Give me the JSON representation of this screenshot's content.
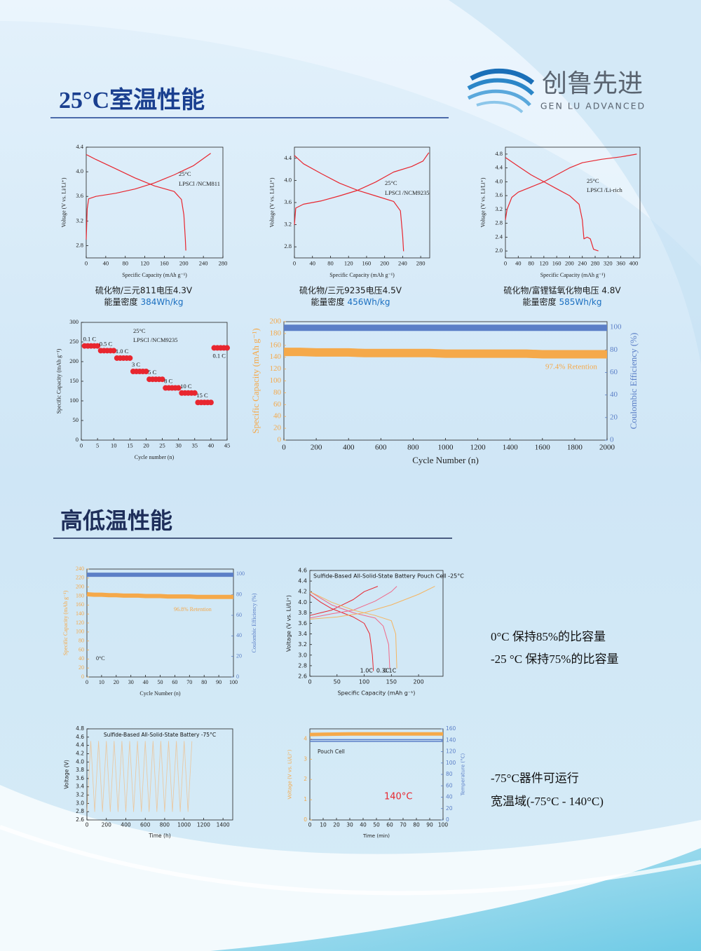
{
  "logo": {
    "name": "创鲁先进",
    "subtitle": "GEN LU ADVANCED"
  },
  "sections": [
    {
      "title": "25°C室温性能"
    },
    {
      "title": "高低温性能"
    }
  ],
  "captions": [
    {
      "model": "硫化物/三元811电压4.3V",
      "label": "能量密度",
      "value": "384Wh/kg"
    },
    {
      "model": "硫化物/三元9235电压4.5V",
      "label": "能量密度",
      "value": "456Wh/kg"
    },
    {
      "model": "硫化物/富锂锰氧化物电压 4.8V",
      "label": "能量密度",
      "value": "585Wh/kg"
    }
  ],
  "notes": [
    "0°C 保持85%的比容量",
    "-25 °C 保持75%的比容量",
    "-75°C器件可运行",
    "宽温域(-75°C - 140°C)"
  ],
  "chart_data": [
    {
      "type": "line",
      "xlabel": "Specific Capacity (mAh g⁻¹)",
      "ylabel": "Voltage (V vs. Li/Li⁺)",
      "xlim": [
        0,
        280
      ],
      "xticks": [
        0,
        40,
        80,
        120,
        160,
        200,
        240,
        280
      ],
      "ylim": [
        2.6,
        4.4
      ],
      "yticks": [
        2.8,
        3.2,
        3.6,
        {
          "value": 4,
          "label": "4.0"
        },
        4.4
      ],
      "annotations": [
        {
          "text": "25°C",
          "color": "#222222"
        },
        {
          "text": "LPSCl /NCM811",
          "color": "#222222"
        }
      ],
      "series": [
        {
          "color": "#e8262f",
          "x": [
            0,
            2,
            5,
            20,
            60,
            100,
            140,
            180,
            220,
            255
          ],
          "values": [
            2.9,
            3.4,
            3.56,
            3.6,
            3.65,
            3.72,
            3.82,
            3.95,
            4.1,
            4.3
          ]
        },
        {
          "color": "#e8262f",
          "x": [
            0,
            20,
            60,
            100,
            140,
            180,
            195,
            200,
            203,
            204
          ],
          "values": [
            4.28,
            4.2,
            4.05,
            3.9,
            3.77,
            3.68,
            3.55,
            3.3,
            2.9,
            2.72
          ]
        }
      ]
    },
    {
      "type": "line",
      "xlabel": "Specific Capacity (mAh g⁻¹)",
      "ylabel": "Voltage (V vs. Li/Li⁺)",
      "xlim": [
        0,
        300
      ],
      "xticks": [
        0,
        40,
        80,
        120,
        160,
        200,
        240,
        280
      ],
      "ylim": [
        2.6,
        4.6
      ],
      "yticks": [
        2.8,
        3.2,
        3.6,
        {
          "value": 4,
          "label": "4.0"
        },
        4.4
      ],
      "annotations": [
        {
          "text": "25°C",
          "color": "#222222"
        },
        {
          "text": "LPSCl /NCM9235",
          "color": "#222222"
        }
      ],
      "series": [
        {
          "color": "#e8262f",
          "x": [
            0,
            3,
            20,
            60,
            100,
            140,
            180,
            220,
            260,
            285,
            298
          ],
          "values": [
            3.2,
            3.5,
            3.57,
            3.63,
            3.72,
            3.82,
            3.97,
            4.15,
            4.25,
            4.35,
            4.5
          ]
        },
        {
          "color": "#e8262f",
          "x": [
            0,
            20,
            60,
            100,
            140,
            180,
            220,
            235,
            240,
            242
          ],
          "values": [
            4.45,
            4.3,
            4.12,
            3.95,
            3.82,
            3.72,
            3.62,
            3.45,
            3.0,
            2.72
          ]
        }
      ]
    },
    {
      "type": "line",
      "xlabel": "Specific Capacity (mAh g⁻¹)",
      "ylabel": "Voltage (V vs. Li/Li⁺)",
      "xlim": [
        0,
        420
      ],
      "xticks": [
        0,
        40,
        80,
        120,
        160,
        200,
        240,
        280,
        320,
        360,
        400
      ],
      "ylim": [
        1.8,
        5.0
      ],
      "yticks": [
        {
          "value": 2,
          "label": "2.0"
        },
        2.4,
        2.8,
        3.2,
        3.6,
        {
          "value": 4,
          "label": "4.0"
        },
        4.4,
        4.8
      ],
      "annotations": [
        {
          "text": "25°C",
          "color": "#222222"
        },
        {
          "text": "LPSCl /Li-rich",
          "color": "#222222"
        }
      ],
      "series": [
        {
          "color": "#e8262f",
          "x": [
            0,
            5,
            20,
            40,
            80,
            120,
            160,
            200,
            240,
            300,
            360,
            410
          ],
          "values": [
            2.9,
            3.2,
            3.55,
            3.7,
            3.85,
            4.0,
            4.2,
            4.4,
            4.55,
            4.65,
            4.72,
            4.8
          ]
        },
        {
          "color": "#e8262f",
          "x": [
            0,
            40,
            80,
            120,
            160,
            200,
            230,
            240,
            245,
            255,
            265,
            275,
            290
          ],
          "values": [
            4.7,
            4.45,
            4.2,
            4.0,
            3.8,
            3.6,
            3.35,
            2.9,
            2.35,
            2.4,
            2.35,
            2.05,
            2.0
          ]
        }
      ]
    },
    {
      "type": "scatter",
      "xlabel": "Cycle number (n)",
      "ylabel": "Specific Capacity (mAh g⁻¹)",
      "xlim": [
        0,
        45
      ],
      "xticks": [
        0,
        5,
        10,
        15,
        20,
        25,
        30,
        35,
        40,
        45
      ],
      "ylim": [
        0,
        300
      ],
      "yticks": [
        0,
        50,
        100,
        150,
        200,
        250,
        300
      ],
      "annotations": [
        {
          "text": "25°C",
          "color": "#222222"
        },
        {
          "text": "LPSCl /NCM9235",
          "color": "#222222"
        }
      ],
      "rate_labels": [
        "0.1 C",
        "0.5 C",
        "1.0 C",
        "3 C",
        "5 C",
        "8 C",
        "10 C",
        "15 C",
        "0.1 C"
      ],
      "series": [
        {
          "color": "#e8262f",
          "x": [
            1,
            2,
            3,
            4,
            5,
            6,
            7,
            8,
            9,
            10,
            11,
            12,
            13,
            14,
            15,
            16,
            17,
            18,
            19,
            20,
            21,
            22,
            23,
            24,
            25,
            26,
            27,
            28,
            29,
            30,
            31,
            32,
            33,
            34,
            35,
            36,
            37,
            38,
            39,
            40,
            41,
            42,
            43,
            44,
            45
          ],
          "values": [
            240,
            240,
            240,
            240,
            240,
            228,
            228,
            228,
            228,
            228,
            209,
            209,
            209,
            209,
            209,
            175,
            175,
            175,
            175,
            175,
            155,
            155,
            155,
            155,
            155,
            133,
            133,
            133,
            133,
            133,
            120,
            120,
            120,
            120,
            120,
            96,
            96,
            96,
            96,
            96,
            235,
            235,
            235,
            235,
            235
          ]
        }
      ]
    },
    {
      "type": "line",
      "xlabel": "Cycle Number (n)",
      "ylabel": "Specific Capacity (mAh g⁻¹)",
      "y2label": "Coulombic Efficiency (%)",
      "xlim": [
        0,
        2000
      ],
      "xticks": [
        0,
        200,
        400,
        600,
        800,
        1000,
        1200,
        1400,
        1600,
        1800,
        2000
      ],
      "ylim": [
        0,
        200
      ],
      "yticks": [
        0,
        20,
        40,
        60,
        80,
        100,
        120,
        140,
        160,
        180,
        200
      ],
      "y2lim": [
        0,
        105
      ],
      "y2ticks": [
        0,
        20,
        40,
        60,
        80,
        100
      ],
      "annotations": [
        {
          "text": "97.4% Retention",
          "color": "#f5a94a"
        }
      ],
      "series": [
        {
          "color": "#f5a94a",
          "x": [
            0,
            100,
            200,
            300,
            400,
            500,
            600,
            700,
            800,
            900,
            1000,
            1100,
            1200,
            1300,
            1400,
            1500,
            1600,
            1700,
            1800,
            1900,
            2000
          ],
          "values": [
            149,
            149,
            148,
            148,
            148,
            147,
            147,
            147,
            147,
            147,
            146,
            146,
            146,
            146,
            146,
            146,
            145,
            145,
            145,
            145,
            145
          ]
        },
        {
          "color": "#5b7fc7",
          "axis": "y2",
          "x": [
            0,
            100,
            200,
            300,
            400,
            500,
            600,
            700,
            800,
            900,
            1000,
            1100,
            1200,
            1300,
            1400,
            1500,
            1600,
            1700,
            1800,
            1900,
            2000
          ],
          "values": [
            99.6,
            99.6,
            99.6,
            99.6,
            99.6,
            99.6,
            99.6,
            99.6,
            99.6,
            99.6,
            99.6,
            99.6,
            99.6,
            99.6,
            99.6,
            99.6,
            99.6,
            99.6,
            99.6,
            99.6,
            99.6
          ]
        }
      ]
    },
    {
      "type": "line",
      "xlabel": "Cycle Number (n)",
      "ylabel": "Specific Capacity (mAh g⁻¹)",
      "y2label": "Coulombic Efficiency (%)",
      "xlim": [
        0,
        100
      ],
      "xticks": [
        0,
        10,
        20,
        30,
        40,
        50,
        60,
        70,
        80,
        90,
        100
      ],
      "ylim": [
        0,
        240
      ],
      "yticks": [
        0,
        20,
        40,
        60,
        80,
        100,
        120,
        140,
        160,
        180,
        200,
        220,
        240
      ],
      "y2lim": [
        0,
        105
      ],
      "y2ticks": [
        0,
        20,
        40,
        60,
        80,
        100
      ],
      "annotations": [
        {
          "text": "96.8% Retention",
          "color": "#f5a94a"
        },
        {
          "text": "0°C",
          "color": "#222222"
        }
      ],
      "series": [
        {
          "color": "#f5a94a",
          "x": [
            0,
            5,
            10,
            15,
            20,
            25,
            30,
            35,
            40,
            45,
            50,
            55,
            60,
            65,
            70,
            75,
            80,
            85,
            90,
            95,
            100
          ],
          "values": [
            184,
            183,
            183,
            182,
            182,
            181,
            181,
            181,
            180,
            180,
            180,
            179,
            179,
            179,
            179,
            178,
            178,
            178,
            178,
            178,
            178
          ]
        },
        {
          "color": "#5b7fc7",
          "axis": "y2",
          "x": [
            0,
            5,
            10,
            15,
            20,
            25,
            30,
            35,
            40,
            45,
            50,
            55,
            60,
            65,
            70,
            75,
            80,
            85,
            90,
            95,
            100
          ],
          "values": [
            99.5,
            99.5,
            99.5,
            99.5,
            99.5,
            99.5,
            99.5,
            99.5,
            99.5,
            99.5,
            99.5,
            99.5,
            99.5,
            99.5,
            99.5,
            99.5,
            99.5,
            99.5,
            99.5,
            99.5,
            99.5
          ]
        }
      ]
    },
    {
      "type": "line",
      "title": "Sulfide-Based All-Solid-State Battery Pouch Cell -25°C",
      "xlabel": "Specific Capacity (mAh g⁻¹)",
      "ylabel": "Voltage (V vs. Li/Li⁺)",
      "xlim": [
        0,
        245
      ],
      "xticks": [
        0,
        50,
        100,
        150,
        200
      ],
      "ylim": [
        2.6,
        4.6
      ],
      "yticks": [
        2.6,
        2.8,
        {
          "value": 3,
          "label": "3.0"
        },
        3.2,
        3.4,
        3.6,
        3.8,
        {
          "value": 4,
          "label": "4.0"
        },
        4.2,
        4.4,
        4.6
      ],
      "series": [
        {
          "name": "1.0C",
          "color": "#e8262f",
          "x": [
            0,
            20,
            40,
            60,
            80,
            100,
            110,
            115,
            117
          ],
          "values": [
            4.15,
            4.0,
            3.88,
            3.8,
            3.72,
            3.6,
            3.4,
            3.0,
            2.7
          ]
        },
        {
          "color": "#e8262f",
          "x": [
            0,
            20,
            40,
            60,
            80,
            100,
            125
          ],
          "values": [
            3.75,
            3.8,
            3.85,
            3.95,
            4.05,
            4.2,
            4.3
          ]
        },
        {
          "name": "0.3C",
          "color": "#f06a8a",
          "x": [
            0,
            40,
            80,
            120,
            135,
            145,
            147
          ],
          "values": [
            4.2,
            3.95,
            3.8,
            3.7,
            3.55,
            3.2,
            2.75
          ]
        },
        {
          "color": "#f06a8a",
          "x": [
            0,
            40,
            80,
            120,
            150,
            160
          ],
          "values": [
            3.7,
            3.78,
            3.85,
            4.02,
            4.2,
            4.3
          ]
        },
        {
          "name": "0.1C",
          "color": "#f5b560",
          "x": [
            0,
            40,
            80,
            120,
            150,
            158,
            160
          ],
          "values": [
            4.2,
            4.0,
            3.85,
            3.75,
            3.65,
            3.4,
            2.75
          ]
        },
        {
          "color": "#f5b560",
          "x": [
            0,
            50,
            100,
            150,
            200,
            230
          ],
          "values": [
            3.68,
            3.72,
            3.8,
            3.95,
            4.15,
            4.3
          ]
        }
      ]
    },
    {
      "type": "line",
      "title": "Sulfide-Based All-Solid-State Battery  -75°C",
      "xlabel": "Time (h)",
      "ylabel": "Voltage (V)",
      "xlim": [
        0,
        1500
      ],
      "xticks": [
        0,
        200,
        400,
        600,
        800,
        1000,
        1200,
        1400
      ],
      "ylim": [
        2.6,
        4.8
      ],
      "yticks": [
        2.6,
        2.8,
        {
          "value": 3,
          "label": "3.0"
        },
        3.2,
        3.4,
        3.6,
        3.8,
        {
          "value": 4,
          "label": "4.0"
        },
        4.2,
        4.4,
        4.6,
        4.8
      ],
      "series": [
        {
          "color": "#f5b878",
          "x": [
            0,
            40,
            80,
            120,
            160,
            200,
            240,
            280,
            320,
            360,
            400,
            440,
            480,
            520,
            560,
            600,
            640,
            680,
            720,
            760,
            800,
            840,
            880,
            920,
            960,
            1000,
            1040,
            1080
          ],
          "values": [
            2.8,
            4.5,
            2.8,
            4.5,
            2.8,
            4.5,
            2.8,
            4.5,
            2.8,
            4.5,
            2.8,
            4.5,
            2.8,
            4.5,
            2.8,
            4.5,
            2.8,
            4.5,
            2.8,
            4.5,
            2.8,
            4.5,
            2.8,
            4.5,
            2.8,
            4.5,
            2.8,
            4.5
          ]
        }
      ]
    },
    {
      "type": "line",
      "xlabel": "Time (min)",
      "ylabel": "Voltage (V vs. Li/Li⁺)",
      "y2label": "Temperature (°C)",
      "xlim": [
        0,
        100
      ],
      "xticks": [
        0,
        10,
        20,
        30,
        40,
        50,
        60,
        70,
        80,
        90,
        100
      ],
      "ylim": [
        0,
        4.5
      ],
      "yticks": [
        0,
        1,
        2,
        3,
        4
      ],
      "y2lim": [
        0,
        160
      ],
      "y2ticks": [
        0,
        20,
        40,
        60,
        80,
        100,
        120,
        140,
        160
      ],
      "annotations": [
        {
          "text": "Pouch Cell",
          "color": "#222222"
        },
        {
          "text": "140°C",
          "color": "#e8262f"
        }
      ],
      "series": [
        {
          "color": "#f5a94a",
          "x": [
            0,
            10,
            20,
            30,
            40,
            50,
            60,
            70,
            80,
            90,
            100
          ],
          "values": [
            4.22,
            4.23,
            4.24,
            4.25,
            4.25,
            4.25,
            4.25,
            4.25,
            4.25,
            4.25,
            4.25
          ]
        },
        {
          "color": "#5b7fc7",
          "axis": "y2",
          "x": [
            0,
            100
          ],
          "values": [
            141,
            141
          ]
        },
        {
          "color": "#5b7fc7",
          "axis": "y2",
          "x": [
            0,
            100
          ],
          "values": [
            138,
            138
          ]
        }
      ]
    }
  ]
}
